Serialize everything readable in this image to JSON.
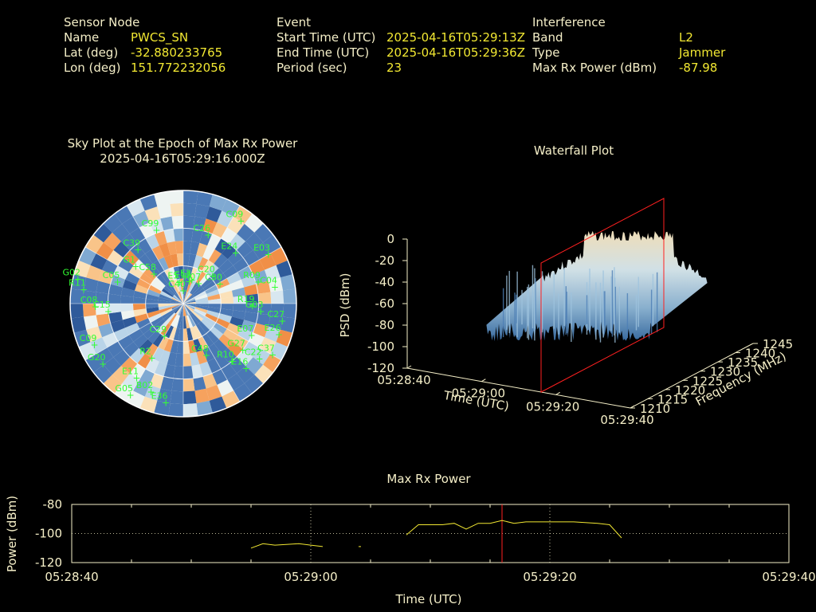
{
  "header": {
    "sensor": {
      "title": "Sensor Node",
      "rows": [
        {
          "label": "Name",
          "value": "PWCS_SN"
        },
        {
          "label": "Lat (deg)",
          "value": "-32.880233765"
        },
        {
          "label": "Lon (deg)",
          "value": "151.772232056"
        }
      ]
    },
    "event": {
      "title": "Event",
      "rows": [
        {
          "label": "Start Time (UTC)",
          "value": "2025-04-16T05:29:13Z"
        },
        {
          "label": "End Time (UTC)",
          "value": "2025-04-16T05:29:36Z"
        },
        {
          "label": "Period (sec)",
          "value": "23"
        }
      ]
    },
    "interference": {
      "title": "Interference",
      "rows": [
        {
          "label": "Band",
          "value": "L2"
        },
        {
          "label": "Type",
          "value": "Jammer"
        },
        {
          "label": "Max Rx Power (dBm)",
          "value": "-87.98"
        }
      ]
    }
  },
  "colors": {
    "text": "#f5efc8",
    "value": "#f2e832",
    "satellite": "#33ff33",
    "marker": "#ff2020",
    "power_line": "#f2e832"
  },
  "chart_data": [
    {
      "type": "scatter",
      "title": "Sky Plot at the Epoch of Max Rx Power",
      "subtitle": "2025-04-16T05:29:16.000Z",
      "satellites": [
        {
          "id": "C40",
          "az": 0,
          "el": 80
        },
        {
          "id": "E13",
          "az": 15,
          "el": 72
        },
        {
          "id": "E3",
          "az": 20,
          "el": 70
        },
        {
          "id": "E5",
          "az": 350,
          "el": 73
        },
        {
          "id": "R07",
          "az": 38,
          "el": 70
        },
        {
          "id": "C20",
          "az": 47,
          "el": 58
        },
        {
          "id": "C30",
          "az": 62,
          "el": 57
        },
        {
          "id": "C58",
          "az": 315,
          "el": 57
        },
        {
          "id": "G1",
          "az": 308,
          "el": 42
        },
        {
          "id": "C05",
          "az": 288,
          "el": 35
        },
        {
          "id": "C39",
          "az": 320,
          "el": 34
        },
        {
          "id": "C99",
          "az": 340,
          "el": 28
        },
        {
          "id": "C26",
          "az": 20,
          "el": 32
        },
        {
          "id": "E24",
          "az": 46,
          "el": 32
        },
        {
          "id": "C04",
          "az": 80,
          "el": 16
        },
        {
          "id": "C08",
          "az": 268,
          "el": 20
        },
        {
          "id": "C09",
          "az": 35,
          "el": 10
        },
        {
          "id": "R09",
          "az": 74,
          "el": 28
        },
        {
          "id": "E03",
          "az": 60,
          "el": 12
        },
        {
          "id": "R19",
          "az": 92,
          "el": 35
        },
        {
          "id": "G03",
          "az": 96,
          "el": 28
        },
        {
          "id": "C27",
          "az": 100,
          "el": 10
        },
        {
          "id": "G02",
          "az": 283,
          "el": 4
        },
        {
          "id": "R11",
          "az": 278,
          "el": 10
        },
        {
          "id": "C15",
          "az": 264,
          "el": 30
        },
        {
          "id": "C29",
          "az": 210,
          "el": 60
        },
        {
          "id": "C09",
          "az": 245,
          "el": 12
        },
        {
          "id": "G20",
          "az": 233,
          "el": 10
        },
        {
          "id": "R2",
          "az": 210,
          "el": 40
        },
        {
          "id": "C48",
          "az": 156,
          "el": 45
        },
        {
          "id": "E07",
          "az": 115,
          "el": 30
        },
        {
          "id": "E26",
          "az": 108,
          "el": 10
        },
        {
          "id": "G27",
          "az": 128,
          "el": 30
        },
        {
          "id": "C37",
          "az": 120,
          "el": 8
        },
        {
          "id": "R10",
          "az": 140,
          "el": 30
        },
        {
          "id": "C22",
          "az": 126,
          "el": 15
        },
        {
          "id": "E16",
          "az": 136,
          "el": 18
        },
        {
          "id": "E11",
          "az": 212,
          "el": 20
        },
        {
          "id": "B02",
          "az": 200,
          "el": 15
        },
        {
          "id": "G05",
          "az": 210,
          "el": 6
        },
        {
          "id": "E36",
          "az": 190,
          "el": 10
        }
      ]
    },
    {
      "type": "surface",
      "title": "Waterfall Plot",
      "xlabel": "Time (UTC)",
      "ylabel": "Frequency (MHz)",
      "zlabel": "PSD (dBm)",
      "x_ticks": [
        "05:28:40",
        "05:29:00",
        "05:29:20",
        "05:29:40"
      ],
      "y_ticks": [
        "1210",
        "1215",
        "1220",
        "1225",
        "1230",
        "1235",
        "1240",
        "1245"
      ],
      "z_ticks": [
        "0",
        "-20",
        "-40",
        "-60",
        "-80",
        "-100",
        "-120"
      ],
      "zlim": [
        -120,
        0
      ],
      "marker_time": "05:29:16"
    },
    {
      "type": "line",
      "title": "Max Rx Power",
      "xlabel": "Time (UTC)",
      "ylabel": "Power (dBm)",
      "x_ticks": [
        "05:28:40",
        "05:29:00",
        "05:29:20",
        "05:29:40"
      ],
      "y_ticks": [
        -80,
        -100,
        -120
      ],
      "xlim": [
        "05:28:40",
        "05:29:40"
      ],
      "ylim": [
        -120,
        -80
      ],
      "marker_time": "05:29:16",
      "segments": [
        [
          [
            "05:28:55",
            -110
          ],
          [
            "05:28:56",
            -107
          ],
          [
            "05:28:57",
            -108
          ],
          [
            "05:28:59",
            -107
          ],
          [
            "05:29:00",
            -108
          ],
          [
            "05:29:01",
            -109
          ]
        ],
        [
          [
            "05:29:04",
            -109
          ],
          [
            "05:29:04.2",
            -109
          ]
        ],
        [
          [
            "05:29:08",
            -101
          ],
          [
            "05:29:09",
            -94
          ],
          [
            "05:29:11",
            -94
          ],
          [
            "05:29:12",
            -93
          ],
          [
            "05:29:13",
            -97
          ],
          [
            "05:29:14",
            -93
          ],
          [
            "05:29:15",
            -93
          ],
          [
            "05:29:16",
            -91
          ],
          [
            "05:29:17",
            -93
          ],
          [
            "05:29:18",
            -92
          ],
          [
            "05:29:20",
            -92
          ],
          [
            "05:29:22",
            -92
          ],
          [
            "05:29:24",
            -93
          ],
          [
            "05:29:25",
            -94
          ],
          [
            "05:29:26",
            -103
          ]
        ]
      ]
    }
  ]
}
